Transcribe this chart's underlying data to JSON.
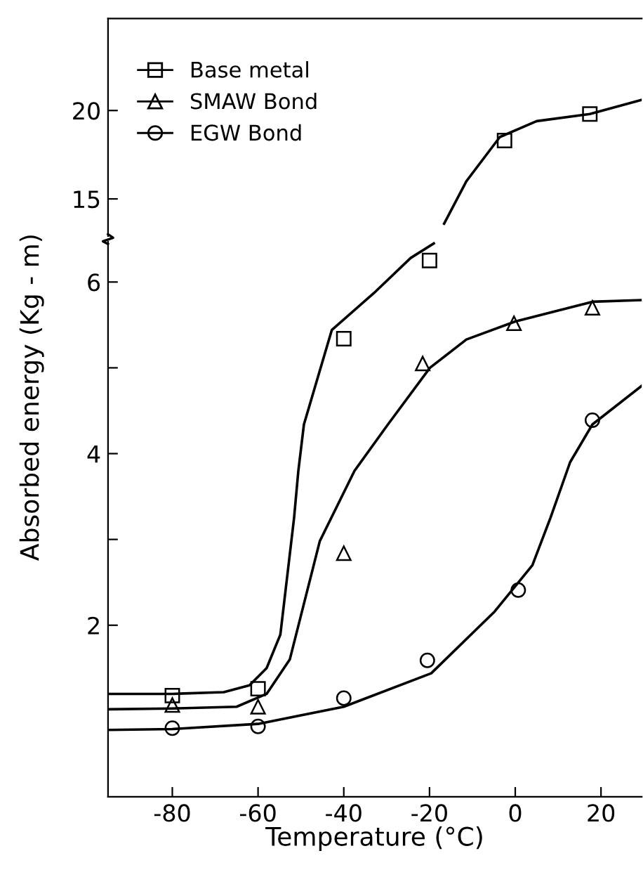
{
  "chart_data": [
    {
      "type": "line",
      "ylim": [
        12.9,
        25.2
      ],
      "yticks": [
        15,
        20
      ],
      "xlim": [
        -95,
        29.5
      ],
      "tick_labels": "y",
      "grid": false,
      "legend": false,
      "series": [
        {
          "type": "scatter",
          "marker": "square",
          "color": "#000000",
          "x": [
            -2.5,
            17.4
          ],
          "values": [
            18.3,
            19.8
          ]
        },
        {
          "marker": "none",
          "color": "#000000",
          "x": [
            -16.6,
            -11.4,
            -3.6,
            5,
            17.4,
            29.5
          ],
          "values": [
            13.6,
            16.0,
            18.5,
            19.4,
            19.8,
            20.6
          ]
        }
      ]
    },
    {
      "type": "line",
      "ylim": [
        0,
        6.47
      ],
      "yticks": [
        {
          "value": 2,
          "label": "2"
        },
        {
          "value": 3,
          "label": null
        },
        {
          "value": 4,
          "label": "4"
        },
        {
          "value": 5,
          "label": null
        },
        {
          "value": 6,
          "label": "6"
        }
      ],
      "xlim": [
        -95,
        29.5
      ],
      "xticks": [
        -80,
        -60,
        -40,
        -20,
        0,
        20
      ],
      "xlabel": "Temperature (°C)",
      "ylabel": "Absorbed energy (Kg - m)",
      "grid": false,
      "legend": "top left",
      "series": [
        {
          "type": "scatter",
          "name": "Base metal",
          "marker": "square",
          "color": "#000000",
          "x": [
            -80,
            -60,
            -40,
            -20
          ],
          "values": [
            1.18,
            1.26,
            5.34,
            6.25
          ]
        },
        {
          "type": "scatter",
          "name": "SMAW Bond",
          "marker": "triangle",
          "color": "#000000",
          "x": [
            -80,
            -60,
            -40,
            -21.6,
            -0.3,
            18
          ],
          "values": [
            1.07,
            1.05,
            2.84,
            5.05,
            5.52,
            5.7
          ]
        },
        {
          "type": "scatter",
          "name": "EGW Bond",
          "marker": "circle",
          "color": "#000000",
          "x": [
            -80,
            -60,
            -40,
            -20.5,
            0.7,
            18
          ],
          "values": [
            0.8,
            0.82,
            1.15,
            1.59,
            2.41,
            4.39
          ]
        },
        {
          "marker": "none",
          "color": "#000000",
          "x": [
            -95,
            -80,
            -68,
            -62,
            -58,
            -54.8,
            -51.6,
            -50.6,
            -49.3,
            -42.8,
            -33,
            -24.4,
            -19
          ],
          "values": [
            1.2,
            1.2,
            1.22,
            1.3,
            1.5,
            1.89,
            3.25,
            3.8,
            4.34,
            5.44,
            5.87,
            6.28,
            6.45
          ]
        },
        {
          "marker": "none",
          "color": "#000000",
          "x": [
            -95,
            -80,
            -65,
            -58,
            -52.6,
            -45.6,
            -37.5,
            -29.7,
            -19.9,
            -11.4,
            0,
            18,
            29.5
          ],
          "values": [
            1.02,
            1.03,
            1.05,
            1.2,
            1.6,
            2.98,
            3.8,
            4.34,
            5.0,
            5.33,
            5.54,
            5.77,
            5.79
          ]
        },
        {
          "marker": "none",
          "color": "#000000",
          "x": [
            -95,
            -80,
            -60,
            -40,
            -19.6,
            -4.8,
            4,
            8.2,
            12.8,
            18,
            29.5
          ],
          "values": [
            0.78,
            0.79,
            0.85,
            1.05,
            1.44,
            2.16,
            2.7,
            3.25,
            3.9,
            4.34,
            4.79
          ]
        }
      ]
    }
  ]
}
